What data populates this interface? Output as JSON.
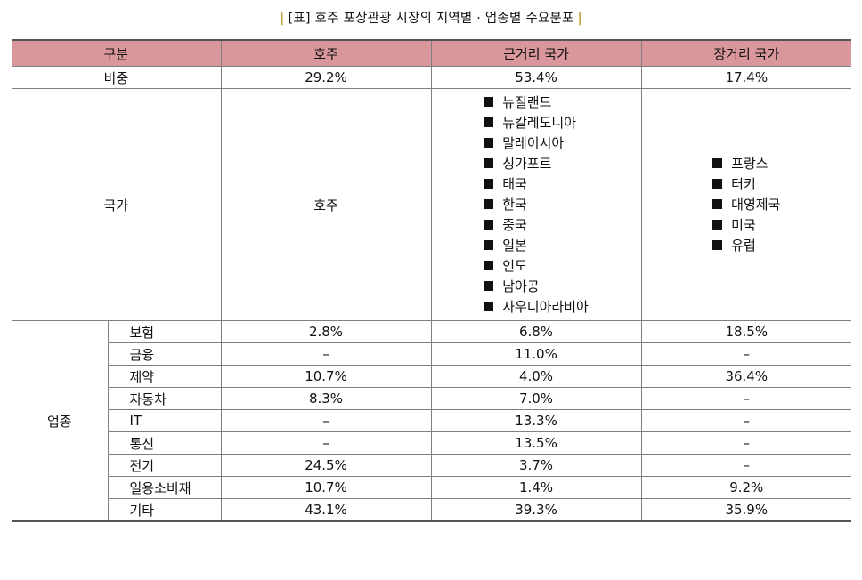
{
  "title": "[표] 호주 포상관광 시장의 지역별 · 업종별 수요분포",
  "table": {
    "headers": [
      "구분",
      "호주",
      "근거리 국가",
      "장거리 국가"
    ],
    "share": {
      "label": "비중",
      "values": [
        "29.2%",
        "53.4%",
        "17.4%"
      ]
    },
    "countries": {
      "label": "국가",
      "australia": "호주",
      "near": [
        "뉴질랜드",
        "뉴칼레도니아",
        "말레이시아",
        "싱가포르",
        "태국",
        "한국",
        "중국",
        "일본",
        "인도",
        "남아공",
        "사우디아라비아"
      ],
      "far": [
        "프랑스",
        "터키",
        "대영제국",
        "미국",
        "유럽"
      ]
    },
    "industry": {
      "label": "업종",
      "rows": [
        {
          "name": "보험",
          "values": [
            "2.8%",
            "6.8%",
            "18.5%"
          ]
        },
        {
          "name": "금융",
          "values": [
            "–",
            "11.0%",
            "–"
          ]
        },
        {
          "name": "제약",
          "values": [
            "10.7%",
            "4.0%",
            "36.4%"
          ]
        },
        {
          "name": "자동차",
          "values": [
            "8.3%",
            "7.0%",
            "–"
          ]
        },
        {
          "name": "IT",
          "values": [
            "–",
            "13.3%",
            "–"
          ]
        },
        {
          "name": "통신",
          "values": [
            "–",
            "13.5%",
            "–"
          ]
        },
        {
          "name": "전기",
          "values": [
            "24.5%",
            "3.7%",
            "–"
          ]
        },
        {
          "name": "일용소비재",
          "values": [
            "10.7%",
            "1.4%",
            "9.2%"
          ]
        },
        {
          "name": "기타",
          "values": [
            "43.1%",
            "39.3%",
            "35.9%"
          ]
        }
      ]
    }
  },
  "colors": {
    "header_bg": "#d9969b",
    "title_bar": "#c8a03c"
  },
  "icons": {
    "bullet": "square-bullet-icon"
  }
}
